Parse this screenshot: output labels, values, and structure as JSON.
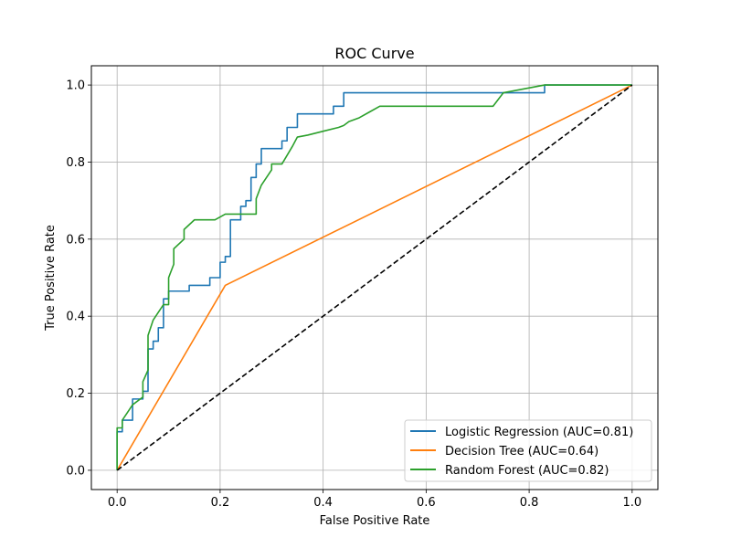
{
  "chart_data": {
    "type": "line",
    "title": "ROC Curve",
    "xlabel": "False Positive Rate",
    "ylabel": "True Positive Rate",
    "xlim": [
      -0.05,
      1.05
    ],
    "ylim": [
      -0.05,
      1.05
    ],
    "xticks": [
      0.0,
      0.2,
      0.4,
      0.6,
      0.8,
      1.0
    ],
    "yticks": [
      0.0,
      0.2,
      0.4,
      0.6,
      0.8,
      1.0
    ],
    "xtick_labels": [
      "0.0",
      "0.2",
      "0.4",
      "0.6",
      "0.8",
      "1.0"
    ],
    "ytick_labels": [
      "0.0",
      "0.2",
      "0.4",
      "0.6",
      "0.8",
      "1.0"
    ],
    "grid": true,
    "legend_position": "lower-right",
    "series": [
      {
        "name": "Logistic Regression (AUC=0.81)",
        "color": "#1f77b4",
        "x": [
          0.0,
          0.0,
          0.01,
          0.01,
          0.03,
          0.03,
          0.05,
          0.05,
          0.06,
          0.06,
          0.07,
          0.07,
          0.08,
          0.08,
          0.09,
          0.09,
          0.1,
          0.1,
          0.14,
          0.14,
          0.18,
          0.18,
          0.2,
          0.2,
          0.21,
          0.21,
          0.22,
          0.22,
          0.24,
          0.24,
          0.25,
          0.25,
          0.26,
          0.26,
          0.27,
          0.27,
          0.28,
          0.28,
          0.32,
          0.32,
          0.33,
          0.33,
          0.35,
          0.35,
          0.42,
          0.42,
          0.44,
          0.44,
          0.48,
          0.48,
          0.83,
          0.83,
          1.0
        ],
        "y": [
          0.0,
          0.1,
          0.1,
          0.13,
          0.13,
          0.185,
          0.185,
          0.205,
          0.205,
          0.315,
          0.315,
          0.335,
          0.335,
          0.37,
          0.37,
          0.445,
          0.445,
          0.465,
          0.465,
          0.48,
          0.48,
          0.5,
          0.5,
          0.54,
          0.54,
          0.555,
          0.555,
          0.65,
          0.65,
          0.685,
          0.685,
          0.7,
          0.7,
          0.76,
          0.76,
          0.795,
          0.795,
          0.835,
          0.835,
          0.855,
          0.855,
          0.89,
          0.89,
          0.925,
          0.925,
          0.945,
          0.945,
          0.98,
          0.98,
          0.98,
          0.98,
          1.0,
          1.0
        ]
      },
      {
        "name": "Decision Tree (AUC=0.64)",
        "color": "#ff7f0e",
        "x": [
          0.0,
          0.21,
          1.0
        ],
        "y": [
          0.0,
          0.48,
          1.0
        ]
      },
      {
        "name": "Random Forest (AUC=0.82)",
        "color": "#2ca02c",
        "x": [
          0.0,
          0.0,
          0.01,
          0.01,
          0.02,
          0.03,
          0.05,
          0.05,
          0.06,
          0.06,
          0.07,
          0.08,
          0.09,
          0.1,
          0.1,
          0.11,
          0.11,
          0.13,
          0.13,
          0.15,
          0.19,
          0.21,
          0.27,
          0.27,
          0.28,
          0.3,
          0.3,
          0.32,
          0.34,
          0.35,
          0.37,
          0.4,
          0.43,
          0.44,
          0.45,
          0.47,
          0.49,
          0.51,
          0.73,
          0.75,
          0.83,
          1.0
        ],
        "y": [
          0.0,
          0.11,
          0.11,
          0.13,
          0.15,
          0.17,
          0.19,
          0.23,
          0.26,
          0.35,
          0.39,
          0.41,
          0.43,
          0.43,
          0.5,
          0.535,
          0.575,
          0.6,
          0.625,
          0.65,
          0.65,
          0.665,
          0.665,
          0.705,
          0.74,
          0.78,
          0.795,
          0.795,
          0.84,
          0.865,
          0.87,
          0.88,
          0.89,
          0.895,
          0.905,
          0.915,
          0.93,
          0.945,
          0.945,
          0.98,
          1.0,
          1.0
        ]
      },
      {
        "name": "",
        "color": "#000000",
        "style": "dashed",
        "x": [
          0.0,
          1.0
        ],
        "y": [
          0.0,
          1.0
        ]
      }
    ]
  }
}
